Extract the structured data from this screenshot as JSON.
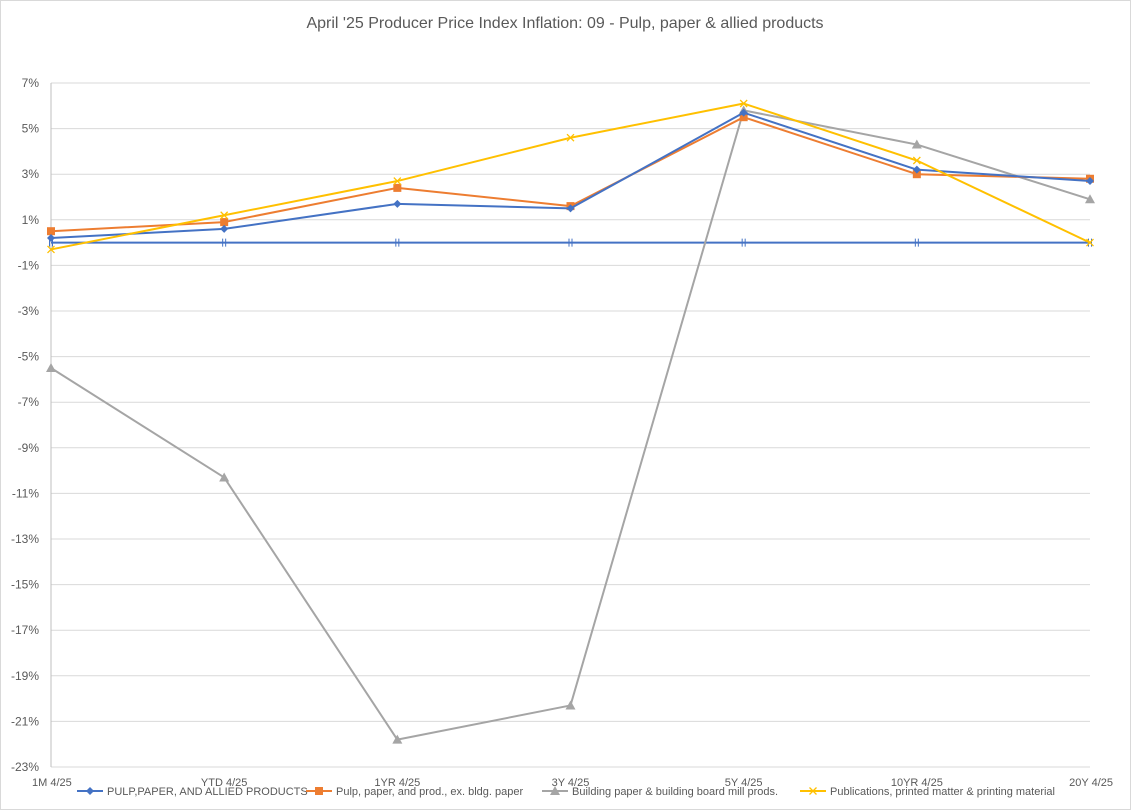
{
  "chart_data": {
    "type": "line",
    "title": "April  '25 Producer Price Index Inflation: 09 - Pulp, paper & allied products",
    "xlabel": "",
    "ylabel": "",
    "categories": [
      "1M 4/25",
      "YTD  4/25",
      "1YR 4/25",
      "3Y 4/25",
      "5Y 4/25",
      "10YR  4/25",
      "20Y 4/25"
    ],
    "ylim": [
      -23,
      7
    ],
    "yticks": [
      7,
      5,
      3,
      1,
      -1,
      -3,
      -5,
      -7,
      -9,
      -11,
      -13,
      -15,
      -17,
      -19,
      -21,
      -23
    ],
    "ytick_format": "%",
    "grid": true,
    "legend_position": "bottom",
    "series": [
      {
        "name": "PULP,PAPER, AND ALLIED PRODUCTS",
        "color": "#4472C4",
        "marker": "diamond",
        "values": [
          0.2,
          0.6,
          1.7,
          1.5,
          5.7,
          3.2,
          2.7
        ]
      },
      {
        "name": "Pulp, paper, and prod., ex. bldg. paper",
        "color": "#ED7D31",
        "marker": "square",
        "values": [
          0.5,
          0.9,
          2.4,
          1.6,
          5.5,
          3.0,
          2.8
        ]
      },
      {
        "name": "Building paper & building board mill prods.",
        "color": "#A5A5A5",
        "marker": "triangle",
        "values": [
          -5.5,
          -10.3,
          -21.8,
          -20.3,
          5.8,
          4.3,
          1.9
        ]
      },
      {
        "name": "Publications, printed matter & printing material",
        "color": "#FFC000",
        "marker": "x",
        "values": [
          -0.3,
          1.2,
          2.7,
          4.6,
          6.1,
          3.6,
          0.0
        ]
      },
      {
        "name": "",
        "color": "#4472C4",
        "marker": "bar",
        "values": [
          0,
          0,
          0,
          0,
          0,
          0,
          0
        ]
      }
    ]
  }
}
